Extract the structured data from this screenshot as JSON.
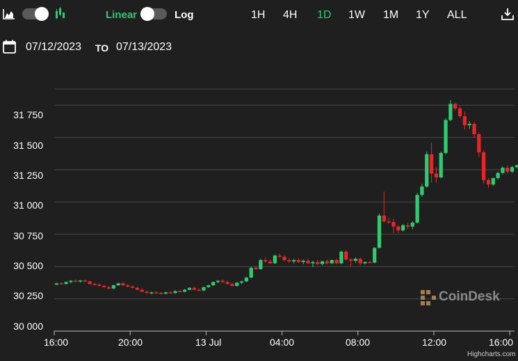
{
  "toolbar": {
    "linear_label": "Linear",
    "log_label": "Log",
    "ranges": [
      "1H",
      "4H",
      "1D",
      "1W",
      "1M",
      "1Y",
      "ALL"
    ],
    "active_range": "1D",
    "linear_active": true
  },
  "dates": {
    "from": "07/12/2023",
    "to_label": "TO",
    "to": "07/13/2023"
  },
  "watermark": "CoinDesk",
  "credits": "Highcharts.com",
  "colors": {
    "up": "#2ecc71",
    "down": "#e8262a",
    "background": "#1f1f1f",
    "grid": "#4a4a4a",
    "accent": "#2ecc71"
  },
  "icons": [
    "area-chart-icon",
    "candlestick-icon",
    "calendar-icon",
    "download-icon"
  ],
  "chart_data": {
    "type": "candlestick",
    "ylim": [
      30000,
      31875
    ],
    "y_ticks": [
      "30 000",
      "30 250",
      "30 500",
      "30 750",
      "31 000",
      "31 250",
      "31 500",
      "31 750"
    ],
    "y_tick_values": [
      30000,
      30250,
      30500,
      30750,
      31000,
      31250,
      31500,
      31750
    ],
    "x_ticks": [
      "16:00",
      "20:00",
      "13 Jul",
      "04:00",
      "08:00",
      "12:00",
      "16:00"
    ],
    "x_tick_hours": [
      0,
      4,
      8,
      12,
      16,
      20,
      24
    ],
    "interval_minutes": 15,
    "candles": [
      [
        30360,
        30375,
        30355,
        30370
      ],
      [
        30370,
        30380,
        30360,
        30365
      ],
      [
        30365,
        30385,
        30360,
        30380
      ],
      [
        30380,
        30395,
        30370,
        30390
      ],
      [
        30390,
        30400,
        30380,
        30385
      ],
      [
        30385,
        30395,
        30375,
        30392
      ],
      [
        30392,
        30400,
        30380,
        30385
      ],
      [
        30385,
        30390,
        30360,
        30365
      ],
      [
        30365,
        30375,
        30355,
        30360
      ],
      [
        30360,
        30370,
        30345,
        30350
      ],
      [
        30350,
        30360,
        30335,
        30340
      ],
      [
        30340,
        30350,
        30325,
        30330
      ],
      [
        30330,
        30360,
        30325,
        30355
      ],
      [
        30355,
        30375,
        30350,
        30370
      ],
      [
        30370,
        30380,
        30350,
        30355
      ],
      [
        30355,
        30365,
        30340,
        30345
      ],
      [
        30345,
        30355,
        30330,
        30335
      ],
      [
        30335,
        30345,
        30315,
        30320
      ],
      [
        30320,
        30330,
        30300,
        30305
      ],
      [
        30305,
        30315,
        30290,
        30295
      ],
      [
        30295,
        30305,
        30285,
        30300
      ],
      [
        30300,
        30310,
        30290,
        30295
      ],
      [
        30295,
        30305,
        30285,
        30290
      ],
      [
        30290,
        30305,
        30285,
        30300
      ],
      [
        30300,
        30310,
        30290,
        30295
      ],
      [
        30295,
        30315,
        30290,
        30310
      ],
      [
        30310,
        30320,
        30300,
        30305
      ],
      [
        30305,
        30325,
        30300,
        30320
      ],
      [
        30320,
        30340,
        30315,
        30335
      ],
      [
        30335,
        30345,
        30315,
        30320
      ],
      [
        30320,
        30330,
        30310,
        30315
      ],
      [
        30315,
        30345,
        30310,
        30340
      ],
      [
        30340,
        30360,
        30335,
        30355
      ],
      [
        30355,
        30385,
        30350,
        30380
      ],
      [
        30380,
        30395,
        30370,
        30390
      ],
      [
        30390,
        30400,
        30375,
        30380
      ],
      [
        30380,
        30390,
        30360,
        30365
      ],
      [
        30365,
        30375,
        30345,
        30350
      ],
      [
        30350,
        30380,
        30345,
        30375
      ],
      [
        30375,
        30390,
        30365,
        30385
      ],
      [
        30385,
        30420,
        30380,
        30415
      ],
      [
        30415,
        30500,
        30410,
        30490
      ],
      [
        30490,
        30505,
        30475,
        30480
      ],
      [
        30480,
        30560,
        30475,
        30550
      ],
      [
        30550,
        30570,
        30530,
        30540
      ],
      [
        30540,
        30555,
        30520,
        30525
      ],
      [
        30525,
        30595,
        30520,
        30585
      ],
      [
        30585,
        30600,
        30570,
        30575
      ],
      [
        30575,
        30590,
        30540,
        30550
      ],
      [
        30550,
        30565,
        30530,
        30540
      ],
      [
        30540,
        30560,
        30525,
        30550
      ],
      [
        30550,
        30565,
        30530,
        30535
      ],
      [
        30535,
        30555,
        30520,
        30545
      ],
      [
        30545,
        30560,
        30520,
        30525
      ],
      [
        30525,
        30545,
        30495,
        30535
      ],
      [
        30535,
        30550,
        30510,
        30520
      ],
      [
        30520,
        30545,
        30510,
        30540
      ],
      [
        30540,
        30555,
        30515,
        30525
      ],
      [
        30525,
        30555,
        30520,
        30550
      ],
      [
        30550,
        30560,
        30520,
        30525
      ],
      [
        30525,
        30625,
        30520,
        30615
      ],
      [
        30615,
        30630,
        30545,
        30555
      ],
      [
        30555,
        30565,
        30500,
        30545
      ],
      [
        30545,
        30570,
        30530,
        30560
      ],
      [
        30560,
        30570,
        30510,
        30525
      ],
      [
        30525,
        30540,
        30515,
        30535
      ],
      [
        30535,
        30545,
        30525,
        30530
      ],
      [
        30530,
        30650,
        30525,
        30645
      ],
      [
        30645,
        30910,
        30640,
        30895
      ],
      [
        30895,
        31080,
        30840,
        30850
      ],
      [
        30850,
        30880,
        30830,
        30845
      ],
      [
        30845,
        30870,
        30760,
        30810
      ],
      [
        30810,
        30820,
        30760,
        30780
      ],
      [
        30780,
        30830,
        30770,
        30820
      ],
      [
        30820,
        30840,
        30790,
        30810
      ],
      [
        30810,
        30850,
        30790,
        30840
      ],
      [
        30840,
        31070,
        30835,
        31055
      ],
      [
        31055,
        31140,
        31040,
        31120
      ],
      [
        31120,
        31390,
        31110,
        31370
      ],
      [
        31370,
        31460,
        31150,
        31220
      ],
      [
        31220,
        31270,
        31150,
        31190
      ],
      [
        31190,
        31390,
        31185,
        31380
      ],
      [
        31380,
        31650,
        31370,
        31635
      ],
      [
        31635,
        31790,
        31625,
        31760
      ],
      [
        31760,
        31770,
        31710,
        31725
      ],
      [
        31725,
        31740,
        31650,
        31665
      ],
      [
        31665,
        31700,
        31560,
        31595
      ],
      [
        31595,
        31625,
        31565,
        31605
      ],
      [
        31605,
        31620,
        31500,
        31525
      ],
      [
        31525,
        31540,
        31350,
        31385
      ],
      [
        31385,
        31400,
        31140,
        31170
      ],
      [
        31170,
        31185,
        31110,
        31135
      ],
      [
        31135,
        31190,
        31125,
        31185
      ],
      [
        31185,
        31235,
        31175,
        31225
      ],
      [
        31225,
        31275,
        31215,
        31265
      ],
      [
        31265,
        31285,
        31220,
        31235
      ],
      [
        31235,
        31280,
        31225,
        31270
      ],
      [
        31270,
        31290,
        31260,
        31285
      ]
    ]
  }
}
